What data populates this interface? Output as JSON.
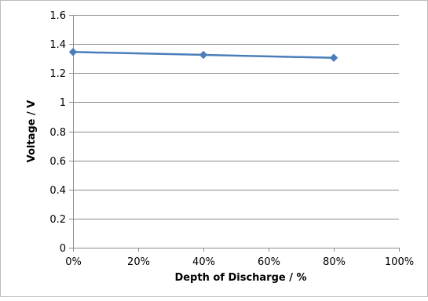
{
  "chart_data": {
    "type": "line",
    "title": "",
    "xlabel": "Depth of Discharge / %",
    "ylabel": "Voltage / V",
    "x_ticks": [
      "0%",
      "20%",
      "40%",
      "60%",
      "80%",
      "100%"
    ],
    "y_ticks": [
      "0",
      "0.2",
      "0.4",
      "0.6",
      "0.8",
      "1",
      "1.2",
      "1.4",
      "1.6"
    ],
    "xlim": [
      0,
      100
    ],
    "ylim": [
      0,
      1.6
    ],
    "grid": "horizontal",
    "legend": "none",
    "series": [
      {
        "x": [
          0,
          40,
          80
        ],
        "y": [
          1.345,
          1.325,
          1.305
        ],
        "color": "#4a7ebb",
        "marker": "diamond"
      }
    ]
  }
}
